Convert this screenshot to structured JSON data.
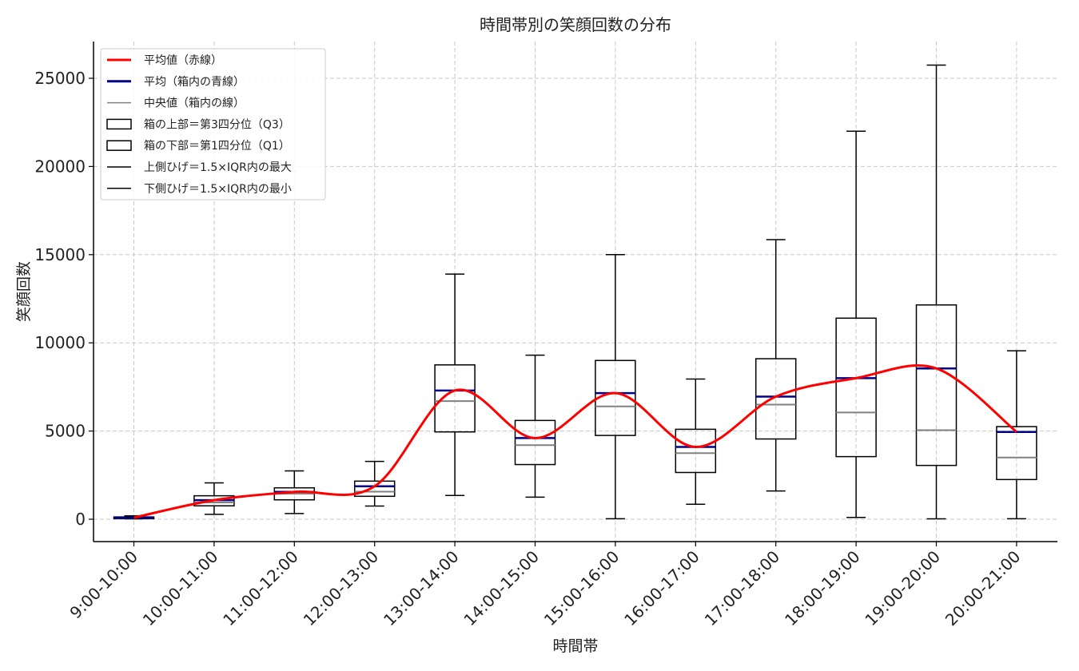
{
  "chart_data": {
    "type": "box",
    "title": "時間帯別の笑顔回数の分布",
    "xlabel": "時間帯",
    "ylabel": "笑顔回数",
    "categories": [
      "9:00-10:00",
      "10:00-11:00",
      "11:00-12:00",
      "12:00-13:00",
      "13:00-14:00",
      "14:00-15:00",
      "15:00-16:00",
      "16:00-17:00",
      "17:00-18:00",
      "18:00-19:00",
      "19:00-20:00",
      "20:00-21:00"
    ],
    "ylim": [
      -1200,
      27000
    ],
    "yticks": [
      0,
      5000,
      10000,
      15000,
      20000,
      25000
    ],
    "grid": true,
    "legend_position": "top-left",
    "boxes": [
      {
        "whisker_low": 20,
        "q1": 30,
        "median": 80,
        "q3": 130,
        "whisker_high": 190,
        "mean": 90
      },
      {
        "whisker_low": 280,
        "q1": 760,
        "median": 950,
        "q3": 1330,
        "whisker_high": 2060,
        "mean": 1080
      },
      {
        "whisker_low": 320,
        "q1": 1100,
        "median": 1450,
        "q3": 1780,
        "whisker_high": 2740,
        "mean": 1550
      },
      {
        "whisker_low": 750,
        "q1": 1300,
        "median": 1560,
        "q3": 2160,
        "whisker_high": 3280,
        "mean": 1870
      },
      {
        "whisker_low": 1350,
        "q1": 4950,
        "median": 6700,
        "q3": 8750,
        "whisker_high": 13900,
        "mean": 7300
      },
      {
        "whisker_low": 1250,
        "q1": 3100,
        "median": 4200,
        "q3": 5600,
        "whisker_high": 9300,
        "mean": 4600
      },
      {
        "whisker_low": 30,
        "q1": 4750,
        "median": 6400,
        "q3": 9000,
        "whisker_high": 15000,
        "mean": 7150
      },
      {
        "whisker_low": 850,
        "q1": 2650,
        "median": 3750,
        "q3": 5100,
        "whisker_high": 7950,
        "mean": 4100
      },
      {
        "whisker_low": 1600,
        "q1": 4550,
        "median": 6500,
        "q3": 9100,
        "whisker_high": 15850,
        "mean": 6950
      },
      {
        "whisker_low": 100,
        "q1": 3550,
        "median": 6050,
        "q3": 11400,
        "whisker_high": 22000,
        "mean": 8000
      },
      {
        "whisker_low": 20,
        "q1": 3050,
        "median": 5050,
        "q3": 12150,
        "whisker_high": 25750,
        "mean": 8550
      },
      {
        "whisker_low": 30,
        "q1": 2250,
        "median": 3500,
        "q3": 5250,
        "whisker_high": 9550,
        "mean": 4950
      }
    ],
    "legend": [
      {
        "label": "平均値（赤線）",
        "style": "line",
        "color": "#ff0000"
      },
      {
        "label": "平均（箱内の青線）",
        "style": "line",
        "color": "#00008b"
      },
      {
        "label": "中央値（箱内の線）",
        "style": "line",
        "color": "#808080"
      },
      {
        "label": "箱の上部＝第3四分位（Q3）",
        "style": "box",
        "color": "#000000"
      },
      {
        "label": "箱の下部＝第1四分位（Q1）",
        "style": "box",
        "color": "#000000"
      },
      {
        "label": "上側ひげ＝1.5×IQR内の最大",
        "style": "line",
        "color": "#000000"
      },
      {
        "label": "下側ひげ＝1.5×IQR内の最小",
        "style": "line",
        "color": "#000000"
      }
    ],
    "colors": {
      "mean_curve": "#ff0000",
      "mean_line": "#00008b",
      "median_line": "#808080",
      "box": "#000000",
      "grid": "#c8c8c8"
    }
  }
}
